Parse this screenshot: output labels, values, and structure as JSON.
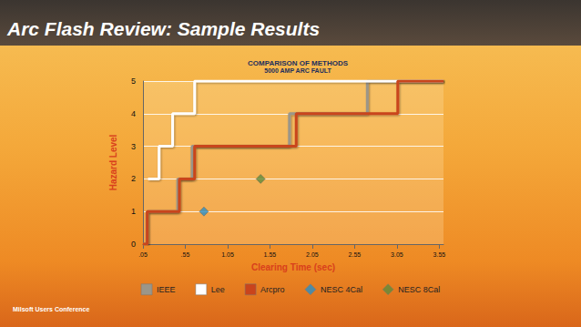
{
  "header": {
    "title": "Arc Flash Review: Sample Results"
  },
  "footer": "Milsoft Users Conference",
  "chart_data": {
    "type": "line",
    "title": "COMPARISON OF METHODS",
    "subtitle": "5000 AMP ARC FAULT",
    "x_label": "Clearing Time (sec)",
    "y_label": "Hazard Level",
    "xlim": [
      0.05,
      3.6
    ],
    "xticks": [
      {
        "value": 0.05,
        "label": ".05"
      },
      {
        "value": 0.55,
        "label": ".55"
      },
      1.05,
      1.55,
      2.05,
      2.55,
      3.05,
      3.55
    ],
    "ylim": [
      0,
      5
    ],
    "yticks": [
      0,
      1,
      2,
      3,
      4,
      5
    ],
    "grid": true,
    "legend": "bottom",
    "series": [
      {
        "name": "IEEE",
        "type": "step",
        "color": "#9b9689",
        "marker": "square",
        "x": [
          0.05,
          0.1,
          0.46,
          0.63,
          1.78,
          2.7,
          3.6
        ],
        "values": [
          0,
          1,
          2,
          3,
          4,
          5,
          5
        ]
      },
      {
        "name": "Lee",
        "type": "step",
        "color": "#ffffff",
        "marker": "square",
        "x": [
          0.11,
          0.24,
          0.4,
          0.66,
          3.6
        ],
        "values": [
          2,
          3,
          4,
          5,
          5
        ]
      },
      {
        "name": "Arcpro",
        "type": "step",
        "color": "#c9441c",
        "marker": "square",
        "x": [
          0.05,
          0.1,
          0.48,
          0.66,
          1.86,
          3.06,
          3.6
        ],
        "values": [
          0,
          1,
          2,
          3,
          4,
          5,
          5
        ]
      },
      {
        "name": "NESC 4Cal",
        "type": "scatter",
        "color": "#2b8ec6",
        "marker": "diamond",
        "x": [
          0.77
        ],
        "values": [
          1
        ]
      },
      {
        "name": "NESC 8Cal",
        "type": "scatter",
        "color": "#5f8b3b",
        "marker": "diamond",
        "x": [
          1.44
        ],
        "values": [
          2
        ]
      }
    ]
  }
}
